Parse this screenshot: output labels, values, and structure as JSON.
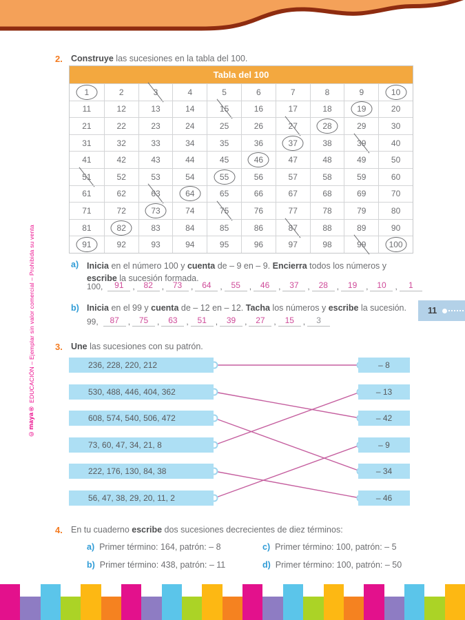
{
  "colors": {
    "band_orange": "#f4a159",
    "band_brown": "#8e2c10",
    "table_header_orange": "#f3a83f",
    "mark_pink": "#d4559b",
    "mark_gray": "#939598",
    "ink_pink": "#cf4a99",
    "ink_gray": "#8f9194",
    "box_blue": "#addff4",
    "badge_blue": "#b3d1e8",
    "line_pink": "#c55f9f",
    "letter_blue": "#2e9bd6",
    "exnum_orange": "#f47b20"
  },
  "sidebar": {
    "brand": "©maya®",
    "rest": " EDUCACIÓN – Ejemplar sin valor comercial – Prohibida su venta"
  },
  "page_badge": {
    "number": "11"
  },
  "exercise2": {
    "number": "2.",
    "instruction": [
      {
        "t": "Construye",
        "b": 1
      },
      {
        "t": " las sucesiones en la tabla del 100.",
        "b": 0
      }
    ],
    "table": {
      "title": "Tabla del 100",
      "rows": [
        [
          1,
          2,
          3,
          4,
          5,
          6,
          7,
          8,
          9,
          10
        ],
        [
          11,
          12,
          13,
          14,
          15,
          16,
          17,
          18,
          19,
          20
        ],
        [
          21,
          22,
          23,
          24,
          25,
          26,
          27,
          28,
          29,
          30
        ],
        [
          31,
          32,
          33,
          34,
          35,
          36,
          37,
          38,
          39,
          40
        ],
        [
          41,
          42,
          43,
          44,
          45,
          46,
          47,
          48,
          49,
          50
        ],
        [
          51,
          52,
          53,
          54,
          55,
          56,
          57,
          58,
          59,
          60
        ],
        [
          61,
          62,
          63,
          64,
          65,
          66,
          67,
          68,
          69,
          70
        ],
        [
          71,
          72,
          73,
          74,
          75,
          76,
          77,
          78,
          79,
          80
        ],
        [
          81,
          82,
          83,
          84,
          85,
          86,
          87,
          88,
          89,
          90
        ],
        [
          91,
          92,
          93,
          94,
          95,
          96,
          97,
          98,
          99,
          100
        ]
      ],
      "circled_pink": [
        1,
        19,
        28,
        37,
        46,
        55,
        64,
        73,
        82,
        91
      ],
      "circled_gray": [
        10,
        100
      ],
      "crossed_pink": [
        3,
        15,
        27,
        39,
        51,
        63,
        75
      ],
      "crossed_gray": [
        87,
        99
      ]
    },
    "part_a": {
      "label": "a)",
      "text": [
        {
          "t": "Inicia",
          "b": 1
        },
        {
          "t": " en el número 100 y ",
          "b": 0
        },
        {
          "t": "cuenta",
          "b": 1
        },
        {
          "t": " de – 9 en – 9. ",
          "b": 0
        },
        {
          "t": "Encierra",
          "b": 1
        },
        {
          "t": " todos los números y ",
          "b": 0
        },
        {
          "t": "escribe",
          "b": 1
        },
        {
          "t": " la sucesión formada.",
          "b": 0
        }
      ],
      "sequence_prefix": "100,",
      "answers": [
        {
          "v": "91",
          "c": "pink"
        },
        {
          "v": "82",
          "c": "pink"
        },
        {
          "v": "73",
          "c": "pink"
        },
        {
          "v": "64",
          "c": "pink"
        },
        {
          "v": "55",
          "c": "pink"
        },
        {
          "v": "46",
          "c": "pink"
        },
        {
          "v": "37",
          "c": "pink"
        },
        {
          "v": "28",
          "c": "pink"
        },
        {
          "v": "19",
          "c": "pink"
        },
        {
          "v": "10",
          "c": "pink"
        },
        {
          "v": "1",
          "c": "pink"
        }
      ]
    },
    "part_b": {
      "label": "b)",
      "text": [
        {
          "t": "Inicia",
          "b": 1
        },
        {
          "t": " en el 99 y ",
          "b": 0
        },
        {
          "t": "cuenta",
          "b": 1
        },
        {
          "t": " de – 12 en – 12. ",
          "b": 0
        },
        {
          "t": "Tacha",
          "b": 1
        },
        {
          "t": " los números y ",
          "b": 0
        },
        {
          "t": "escribe",
          "b": 1
        },
        {
          "t": " la sucesión.",
          "b": 0
        }
      ],
      "sequence_prefix": "99,",
      "answers": [
        {
          "v": "87",
          "c": "pink"
        },
        {
          "v": "75",
          "c": "pink"
        },
        {
          "v": "63",
          "c": "pink"
        },
        {
          "v": "51",
          "c": "pink"
        },
        {
          "v": "39",
          "c": "pink"
        },
        {
          "v": "27",
          "c": "pink"
        },
        {
          "v": "15",
          "c": "pink"
        },
        {
          "v": "3",
          "c": "gray"
        }
      ]
    }
  },
  "exercise3": {
    "number": "3.",
    "instruction": [
      {
        "t": "Une",
        "b": 1
      },
      {
        "t": " las sucesiones con su patrón.",
        "b": 0
      }
    ],
    "sequences": [
      "236, 228, 220, 212",
      "530, 488, 446, 404, 362",
      "608, 574, 540, 506, 472",
      "73, 60, 47, 34, 21, 8",
      "222, 176, 130, 84, 38",
      "56, 47, 38, 29, 20, 11, 2"
    ],
    "patterns": [
      "– 8",
      "– 13",
      "– 42",
      "– 9",
      "– 34",
      "– 46"
    ],
    "connections": [
      [
        0,
        0
      ],
      [
        1,
        2
      ],
      [
        2,
        4
      ],
      [
        3,
        1
      ],
      [
        4,
        5
      ],
      [
        5,
        3
      ]
    ]
  },
  "exercise4": {
    "number": "4.",
    "intro": [
      {
        "t": "En tu cuaderno ",
        "b": 0
      },
      {
        "t": "escribe",
        "b": 1
      },
      {
        "t": " dos sucesiones decrecientes de diez términos:",
        "b": 0
      }
    ],
    "items": [
      {
        "label": "a)",
        "text": "Primer término: 164, patrón: – 8"
      },
      {
        "label": "b)",
        "text": "Primer término: 438, patrón: – 11"
      },
      {
        "label": "c)",
        "text": "Primer término: 100, patrón: – 5"
      },
      {
        "label": "d)",
        "text": "Primer término: 100, patrón: – 50"
      }
    ]
  },
  "footer": {
    "bar_colors": [
      "#e3118c",
      "#8e7cc3",
      "#5bc5ea",
      "#abd326",
      "#fdb813",
      "#f58220"
    ],
    "bar_count": 23
  }
}
